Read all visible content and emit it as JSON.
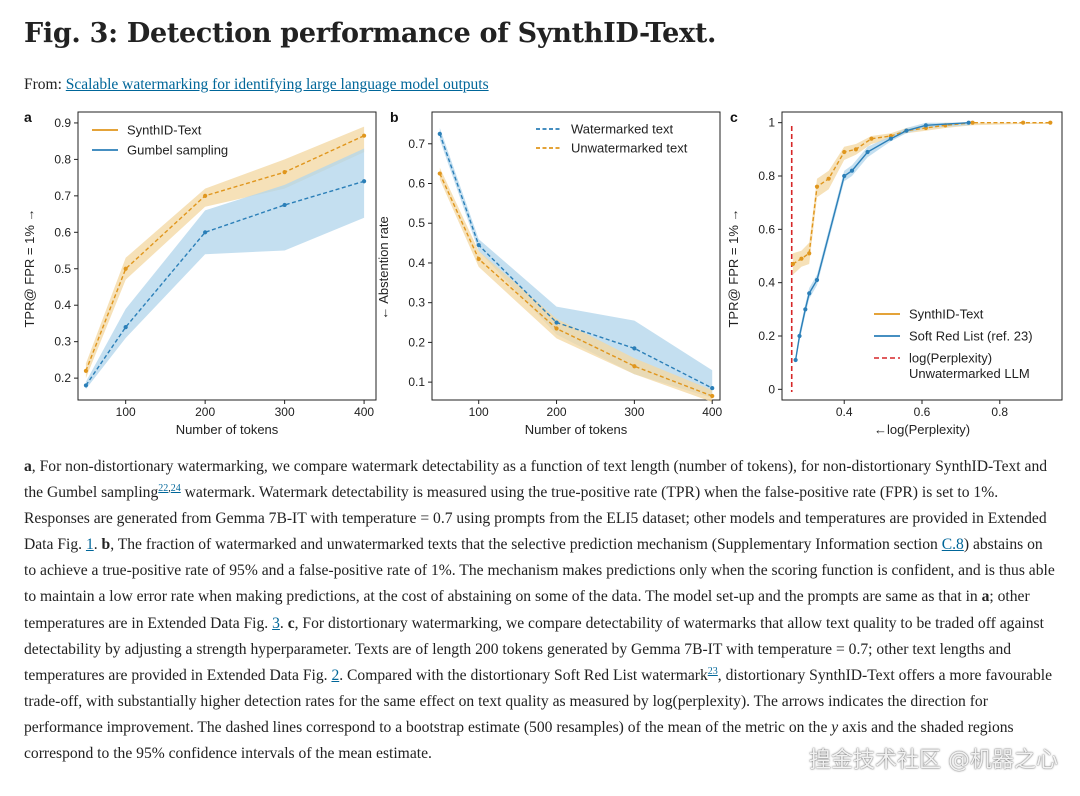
{
  "figure": {
    "title": "Fig. 3: Detection performance of SynthID-Text.",
    "from_prefix": "From: ",
    "from_link": "Scalable watermarking for identifying large language model outputs"
  },
  "colors": {
    "orange": "#e0961d",
    "orange_band": "#f3d9a4",
    "blue": "#2b7fb8",
    "blue_band": "#b3d6ec",
    "red": "#d62728"
  },
  "chart_data": [
    {
      "panel": "a",
      "type": "line",
      "xlabel": "Number of tokens",
      "ylabel": "TPR@ FPR = 1% →",
      "xlim": [
        40,
        415
      ],
      "ylim": [
        0.14,
        0.93
      ],
      "xticks": [
        100,
        200,
        300,
        400
      ],
      "yticks": [
        0.2,
        0.3,
        0.4,
        0.5,
        0.6,
        0.7,
        0.8,
        0.9
      ],
      "legend_position": "top-left",
      "series": [
        {
          "name": "SynthID-Text",
          "color": "#e0961d",
          "band": "#f3d9a4",
          "style": "dashed",
          "x": [
            50,
            100,
            200,
            300,
            400
          ],
          "y": [
            0.22,
            0.5,
            0.7,
            0.765,
            0.865
          ],
          "lower": [
            0.2,
            0.47,
            0.67,
            0.72,
            0.82
          ],
          "upper": [
            0.24,
            0.53,
            0.72,
            0.8,
            0.89
          ]
        },
        {
          "name": "Gumbel sampling",
          "color": "#2b7fb8",
          "band": "#b3d6ec",
          "style": "dashed",
          "x": [
            50,
            100,
            200,
            300,
            400
          ],
          "y": [
            0.18,
            0.34,
            0.6,
            0.675,
            0.74
          ],
          "lower": [
            0.17,
            0.31,
            0.54,
            0.55,
            0.64
          ],
          "upper": [
            0.19,
            0.39,
            0.66,
            0.73,
            0.83
          ]
        }
      ]
    },
    {
      "panel": "b",
      "type": "line",
      "xlabel": "Number of tokens",
      "ylabel": "← Abstention rate",
      "xlim": [
        40,
        410
      ],
      "ylim": [
        0.055,
        0.78
      ],
      "xticks": [
        100,
        200,
        300,
        400
      ],
      "yticks": [
        0.1,
        0.2,
        0.3,
        0.4,
        0.5,
        0.6,
        0.7
      ],
      "legend_position": "top-right",
      "series": [
        {
          "name": "Watermarked text",
          "color": "#2b7fb8",
          "band": "#b3d6ec",
          "style": "dashed",
          "x": [
            50,
            100,
            200,
            300,
            400
          ],
          "y": [
            0.725,
            0.445,
            0.25,
            0.185,
            0.085
          ],
          "lower": [
            0.71,
            0.43,
            0.22,
            0.12,
            0.06
          ],
          "upper": [
            0.74,
            0.46,
            0.29,
            0.255,
            0.13
          ]
        },
        {
          "name": "Unwatermarked text",
          "color": "#e0961d",
          "band": "#f3d9a4",
          "style": "dashed",
          "x": [
            50,
            100,
            200,
            300,
            400
          ],
          "y": [
            0.625,
            0.41,
            0.235,
            0.14,
            0.065
          ],
          "lower": [
            0.61,
            0.39,
            0.21,
            0.12,
            0.05
          ],
          "upper": [
            0.64,
            0.43,
            0.26,
            0.16,
            0.08
          ]
        }
      ]
    },
    {
      "panel": "c",
      "type": "line",
      "xlabel": "←log(Perplexity)",
      "ylabel": "TPR@ FPR = 1% →",
      "xlim": [
        0.24,
        0.96
      ],
      "ylim": [
        -0.04,
        1.04
      ],
      "xticks": [
        0.4,
        0.6,
        0.8
      ],
      "yticks": [
        0.0,
        0.2,
        0.4,
        0.6,
        0.8,
        1.0
      ],
      "legend_position": "bottom-right",
      "vline": {
        "label": "log(Perplexity)",
        "label2": "Unwatermarked LLM",
        "x": 0.265,
        "color": "#d62728"
      },
      "series": [
        {
          "name": "SynthID-Text",
          "color": "#e0961d",
          "band": "#f3d9a4",
          "style": "dashed",
          "x": [
            0.268,
            0.29,
            0.31,
            0.33,
            0.36,
            0.4,
            0.43,
            0.47,
            0.52,
            0.56,
            0.61,
            0.66,
            0.73,
            0.86,
            0.93
          ],
          "y": [
            0.47,
            0.49,
            0.51,
            0.76,
            0.79,
            0.89,
            0.9,
            0.94,
            0.95,
            0.97,
            0.98,
            0.99,
            1.0,
            1.0,
            1.0
          ],
          "lower": [
            0.43,
            0.46,
            0.47,
            0.72,
            0.75,
            0.86,
            0.88,
            0.92,
            0.94,
            0.96,
            0.97,
            0.98,
            0.99,
            0.995,
            0.995
          ],
          "upper": [
            0.51,
            0.52,
            0.55,
            0.79,
            0.82,
            0.91,
            0.92,
            0.95,
            0.96,
            0.98,
            0.99,
            1.0,
            1.0,
            1.0,
            1.0
          ]
        },
        {
          "name": "Soft Red List (ref. 23)",
          "color": "#2b7fb8",
          "band": "#b3d6ec",
          "style": "solid",
          "x": [
            0.275,
            0.285,
            0.3,
            0.31,
            0.33,
            0.4,
            0.42,
            0.46,
            0.52,
            0.56,
            0.61,
            0.72
          ],
          "y": [
            0.11,
            0.2,
            0.3,
            0.36,
            0.41,
            0.8,
            0.82,
            0.89,
            0.94,
            0.97,
            0.99,
            1.0
          ],
          "lower": [
            0.1,
            0.18,
            0.28,
            0.34,
            0.39,
            0.78,
            0.8,
            0.87,
            0.93,
            0.96,
            0.98,
            0.99
          ],
          "upper": [
            0.12,
            0.22,
            0.32,
            0.38,
            0.43,
            0.82,
            0.84,
            0.91,
            0.95,
            0.98,
            1.0,
            1.0
          ]
        }
      ]
    }
  ],
  "caption": {
    "label_a": "a",
    "text_a1": ", For non-distortionary watermarking, we compare watermark detectability as a function of text length (number of tokens), for non-distortionary SynthID-Text and the Gumbel sampling",
    "ref_22": "22",
    "ref_comma": ",",
    "ref_24": "24",
    "text_a2": " watermark. Watermark detectability is measured using the true-positive rate (TPR) when the false-positive rate (FPR) is set to 1%. Responses are generated from Gemma 7B-IT with temperature = 0.7 using prompts from the ELI5 dataset; other models and temperatures are provided in Extended Data Fig. ",
    "ref_fig1": "1",
    "text_a3": ". ",
    "label_b": "b",
    "text_b1": ", The fraction of watermarked and unwatermarked texts that the selective prediction mechanism (Supplementary Information section ",
    "ref_c8": "C.8",
    "text_b2": ") abstains on to achieve a true-positive rate of 95% and a false-positive rate of 1%. The mechanism makes predictions only when the scoring function is confident, and is thus able to maintain a low error rate when making predictions, at the cost of abstaining on some of the data. The model set-up and the prompts are same as that in ",
    "label_a_inline": "a",
    "text_b3": "; other temperatures are in Extended Data Fig. ",
    "ref_fig3": "3",
    "text_b4": ". ",
    "label_c": "c",
    "text_c1": ", For distortionary watermarking, we compare detectability of watermarks that allow text quality to be traded off against detectability by adjusting a strength hyperparameter. Texts are of length 200 tokens generated by Gemma 7B-IT with temperature = 0.7; other text lengths and temperatures are provided in Extended Data Fig. ",
    "ref_fig2": "2",
    "text_c2": ". Compared with the distortionary Soft Red List watermark",
    "ref_23": "23",
    "text_c3": ", distortionary SynthID-Text offers a more favourable trade-off, with substantially higher detection rates for the same effect on text quality as measured by log(perplexity). The arrows indicates the direction for performance improvement. The dashed lines correspond to a bootstrap estimate (500 resamples) of the mean of the metric on the ",
    "y_axis_italic": "y",
    "text_c4": " axis and the shaded regions correspond to the 95% confidence intervals of the mean estimate."
  },
  "watermark": "揘金技术社区 @机器之心"
}
